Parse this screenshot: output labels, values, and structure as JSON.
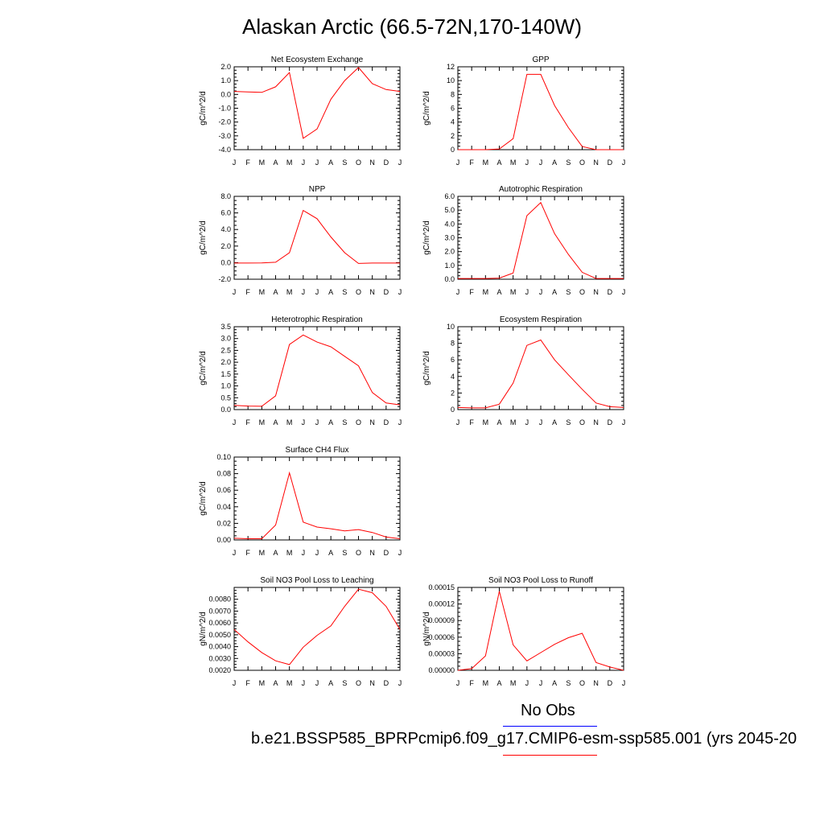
{
  "title": "Alaskan Arctic (66.5-72N,170-140W)",
  "months": [
    "J",
    "F",
    "M",
    "A",
    "M",
    "J",
    "J",
    "A",
    "S",
    "O",
    "N",
    "D",
    "J"
  ],
  "line_color": "#ff0000",
  "legend": {
    "obs_label": "No Obs",
    "obs_color": "#0000ff",
    "model_label": "b.e21.BSSP585_BPRPcmip6.f09_g17.CMIP6-esm-ssp585.001 (yrs 2045-20",
    "model_color": "#ff0000"
  },
  "chart_data": [
    {
      "type": "line",
      "title": "Net Ecosystem Exchange",
      "ylabel": "gC/m^2/d",
      "ylim": [
        -4.0,
        2.0
      ],
      "yticks": [
        "-4.0",
        "-3.0",
        "-2.0",
        "-1.0",
        "0.0",
        "1.0",
        "2.0"
      ],
      "yvals": [
        -4,
        -3,
        -2,
        -1,
        0,
        1,
        2
      ],
      "values": [
        0.22,
        0.18,
        0.15,
        0.55,
        1.58,
        -3.18,
        -2.5,
        -0.35,
        1.0,
        1.95,
        0.78,
        0.35,
        0.22
      ]
    },
    {
      "type": "line",
      "title": "GPP",
      "ylabel": "gC/m^2/d",
      "ylim": [
        0,
        12
      ],
      "yticks": [
        "0",
        "2",
        "4",
        "6",
        "8",
        "10",
        "12"
      ],
      "yvals": [
        0,
        2,
        4,
        6,
        8,
        10,
        12
      ],
      "values": [
        0.0,
        0.0,
        0.0,
        0.1,
        1.6,
        10.9,
        10.9,
        6.4,
        3.2,
        0.45,
        0.0,
        0.0,
        0.0
      ]
    },
    {
      "type": "line",
      "title": "NPP",
      "ylabel": "gC/m^2/d",
      "ylim": [
        -2.0,
        8.0
      ],
      "yticks": [
        "-2.0",
        "0.0",
        "2.0",
        "4.0",
        "6.0",
        "8.0"
      ],
      "yvals": [
        -2,
        0,
        2,
        4,
        6,
        8
      ],
      "values": [
        -0.05,
        -0.05,
        -0.03,
        0.05,
        1.2,
        6.3,
        5.3,
        3.1,
        1.2,
        -0.1,
        -0.05,
        -0.05,
        -0.05
      ]
    },
    {
      "type": "line",
      "title": "Autotrophic Respiration",
      "ylabel": "gC/m^2/d",
      "ylim": [
        0,
        6.0
      ],
      "yticks": [
        "0.0",
        "1.0",
        "2.0",
        "3.0",
        "4.0",
        "5.0",
        "6.0"
      ],
      "yvals": [
        0,
        1,
        2,
        3,
        4,
        5,
        6
      ],
      "values": [
        0.05,
        0.05,
        0.05,
        0.08,
        0.45,
        4.6,
        5.55,
        3.3,
        1.8,
        0.5,
        0.05,
        0.05,
        0.05
      ]
    },
    {
      "type": "line",
      "title": "Heterotrophic Respiration",
      "ylabel": "gC/m^2/d",
      "ylim": [
        0,
        3.5
      ],
      "yticks": [
        "0.0",
        "0.5",
        "1.0",
        "1.5",
        "2.0",
        "2.5",
        "3.0",
        "3.5"
      ],
      "yvals": [
        0,
        0.5,
        1,
        1.5,
        2,
        2.5,
        3,
        3.5
      ],
      "values": [
        0.18,
        0.15,
        0.14,
        0.58,
        2.75,
        3.15,
        2.85,
        2.65,
        2.25,
        1.85,
        0.72,
        0.28,
        0.2
      ]
    },
    {
      "type": "line",
      "title": "Ecosystem Respiration",
      "ylabel": "gC/m^2/d",
      "ylim": [
        0,
        10
      ],
      "yticks": [
        "0",
        "2",
        "4",
        "6",
        "8",
        "10"
      ],
      "yvals": [
        0,
        2,
        4,
        6,
        8,
        10
      ],
      "values": [
        0.25,
        0.2,
        0.2,
        0.65,
        3.2,
        7.75,
        8.4,
        6.0,
        4.2,
        2.45,
        0.8,
        0.35,
        0.25
      ]
    },
    {
      "type": "line",
      "title": "Surface CH4 Flux",
      "ylabel": "gC/m^2/d",
      "ylim": [
        0,
        0.1
      ],
      "yticks": [
        "0.00",
        "0.02",
        "0.04",
        "0.06",
        "0.08",
        "0.10"
      ],
      "yvals": [
        0,
        0.02,
        0.04,
        0.06,
        0.08,
        0.1
      ],
      "values": [
        0.002,
        0.0015,
        0.0015,
        0.018,
        0.081,
        0.0215,
        0.0155,
        0.0135,
        0.011,
        0.0125,
        0.009,
        0.0035,
        0.0015
      ]
    },
    {
      "type": "line",
      "title": "Soil NO3 Pool Loss to Leaching",
      "ylabel": "gN/m^2/d",
      "ylim": [
        0.002,
        0.009
      ],
      "yticks": [
        "0.0020",
        "0.0030",
        "0.0040",
        "0.0050",
        "0.0060",
        "0.0070",
        "0.0080"
      ],
      "yvals": [
        0.002,
        0.003,
        0.004,
        0.005,
        0.006,
        0.007,
        0.008
      ],
      "values": [
        0.00545,
        0.0044,
        0.0035,
        0.0028,
        0.00248,
        0.00395,
        0.00495,
        0.00575,
        0.0074,
        0.00885,
        0.00855,
        0.0074,
        0.00545
      ]
    },
    {
      "type": "line",
      "title": "Soil NO3 Pool Loss to Runoff",
      "ylabel": "gN/m^2/d",
      "ylim": [
        0,
        0.00015
      ],
      "yticks": [
        "0.00000",
        "0.00003",
        "0.00006",
        "0.00009",
        "0.00012",
        "0.00015"
      ],
      "yvals": [
        0,
        3e-05,
        6e-05,
        9e-05,
        0.00012,
        0.00015
      ],
      "values": [
        0.0,
        3e-06,
        2.6e-05,
        0.000143,
        4.6e-05,
        1.7e-05,
        3.2e-05,
        4.7e-05,
        5.9e-05,
        6.7e-05,
        1.4e-05,
        6e-06,
        0.0
      ]
    }
  ]
}
